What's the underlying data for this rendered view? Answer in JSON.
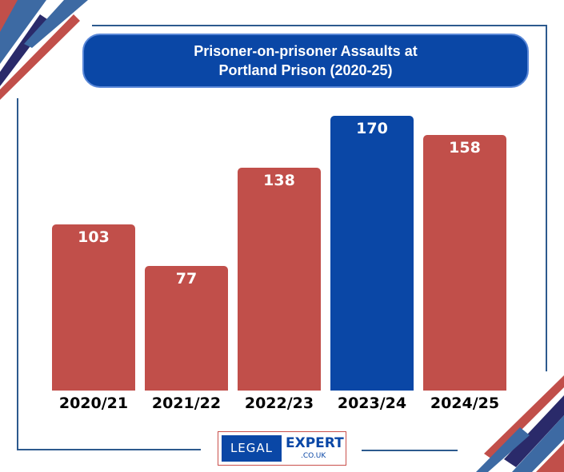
{
  "chart_data": {
    "type": "bar",
    "title": "Prisoner-on-prisoner Assaults at Portland Prison (2020-25)",
    "title_lines": [
      "Prisoner-on-prisoner Assaults at",
      "Portland Prison (2020-25)"
    ],
    "categories": [
      "2020/21",
      "2021/22",
      "2022/23",
      "2023/24",
      "2024/25"
    ],
    "values": [
      103,
      77,
      138,
      170,
      158
    ],
    "highlight_index": 3,
    "ylim": [
      0,
      170
    ],
    "xlabel": "",
    "ylabel": "",
    "colors": {
      "default": "#c14f4a",
      "highlight": "#0a47a6"
    }
  },
  "logo": {
    "left": "LEGAL",
    "right": "EXPERT",
    "domain": ".CO.UK"
  }
}
